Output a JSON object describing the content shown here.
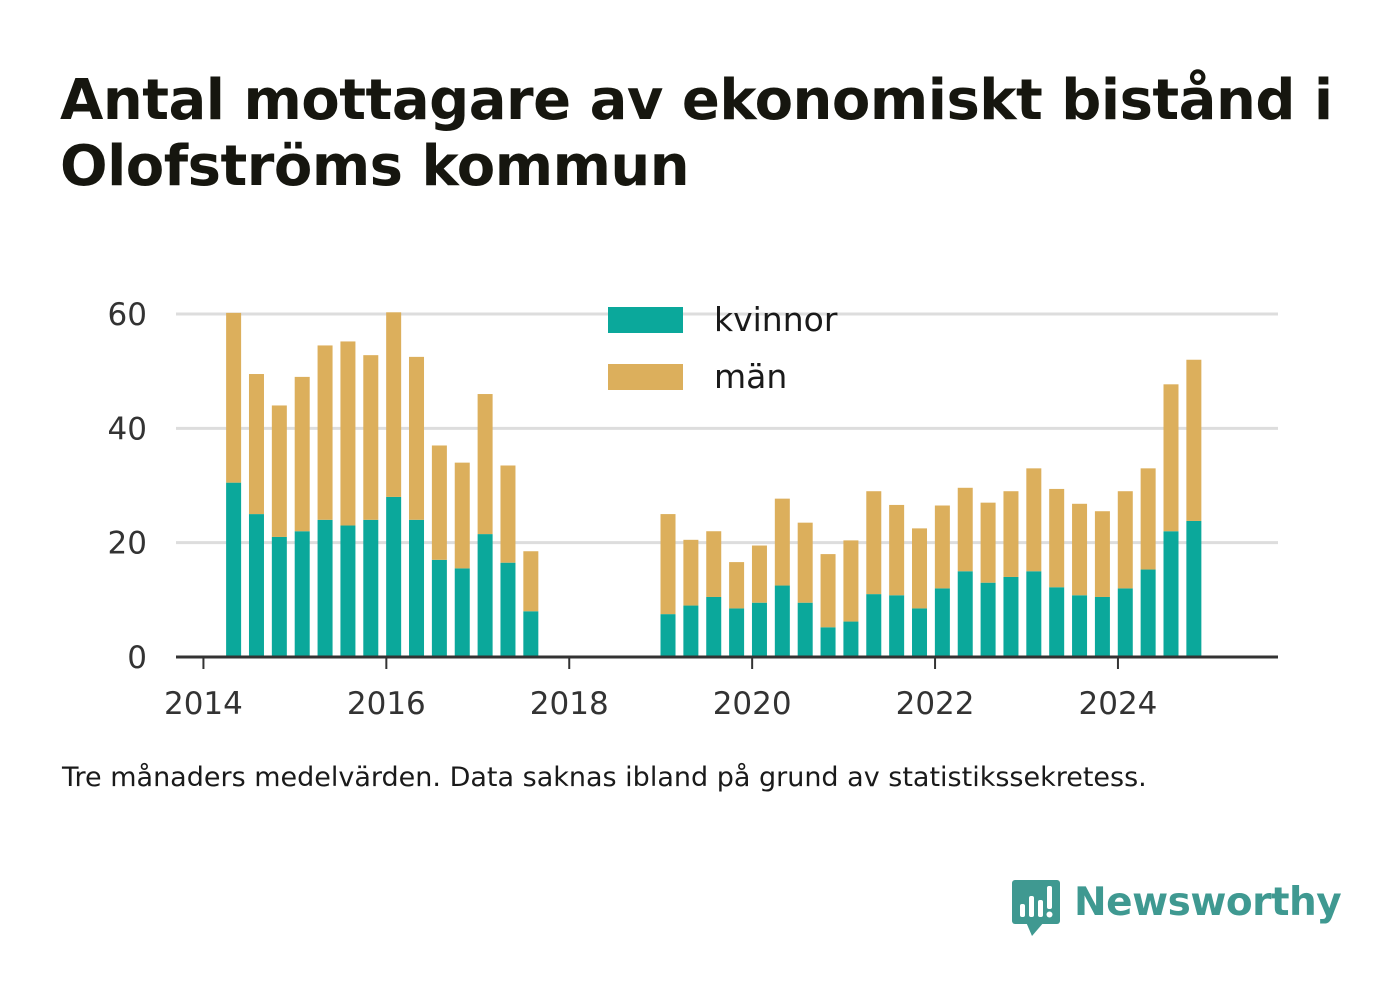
{
  "title": "Antal mottagare av ekonomiskt bistånd i Olofströms kommun",
  "caption": "Tre månaders medelvärden. Data saknas ibland på grund av statistikssekretess.",
  "brand": {
    "name": "Newsworthy",
    "icon": "newsworthy-bar-chart-bubble-icon",
    "color": "#3f9991"
  },
  "colors": {
    "kvinnor": "#0ba89b",
    "man": "#dcaf5c",
    "grid": "#dddddd",
    "axis": "#333333"
  },
  "chart_data": {
    "type": "bar",
    "stacked": true,
    "xlabel": "",
    "ylabel": "",
    "xlim": [
      2013.7,
      2025.75
    ],
    "ylim": [
      0,
      60
    ],
    "x_ticks": [
      "2014",
      "2016",
      "2018",
      "2020",
      "2022",
      "2024"
    ],
    "y_ticks": [
      "0",
      "20",
      "40",
      "60"
    ],
    "grid": true,
    "legend_position": "top-center",
    "x": [
      2014.33,
      2014.58,
      2014.83,
      2015.08,
      2015.33,
      2015.58,
      2015.83,
      2016.08,
      2016.33,
      2016.58,
      2016.83,
      2017.08,
      2017.33,
      2017.58,
      2019.08,
      2019.33,
      2019.58,
      2019.83,
      2020.08,
      2020.33,
      2020.58,
      2020.83,
      2021.08,
      2021.33,
      2021.58,
      2021.83,
      2022.08,
      2022.33,
      2022.58,
      2022.83,
      2023.08,
      2023.33,
      2023.58,
      2023.83,
      2024.08,
      2024.33,
      2024.58,
      2024.83
    ],
    "series": [
      {
        "name": "kvinnor",
        "color": "#0ba89b",
        "values": [
          30.5,
          25,
          21,
          22,
          24,
          23,
          24,
          28,
          24,
          17,
          15.5,
          21.5,
          16.5,
          8,
          7.5,
          9,
          10.5,
          8.5,
          9.5,
          12.5,
          9.5,
          5.2,
          6.2,
          11,
          10.8,
          8.5,
          12,
          15,
          13,
          14,
          15,
          12.2,
          10.8,
          10.5,
          12,
          15.3,
          22,
          23.8
        ]
      },
      {
        "name": "män",
        "color": "#dcaf5c",
        "values": [
          29.7,
          24.5,
          23,
          27,
          30.5,
          32.2,
          28.8,
          32.3,
          28.5,
          20,
          18.5,
          24.5,
          17,
          10.5,
          17.5,
          11.5,
          11.5,
          8.1,
          10,
          15.2,
          14,
          12.8,
          14.2,
          18,
          15.8,
          14,
          14.5,
          14.6,
          14,
          15,
          18,
          17.2,
          16,
          15,
          17,
          17.7,
          25.7,
          28.2
        ]
      }
    ]
  }
}
